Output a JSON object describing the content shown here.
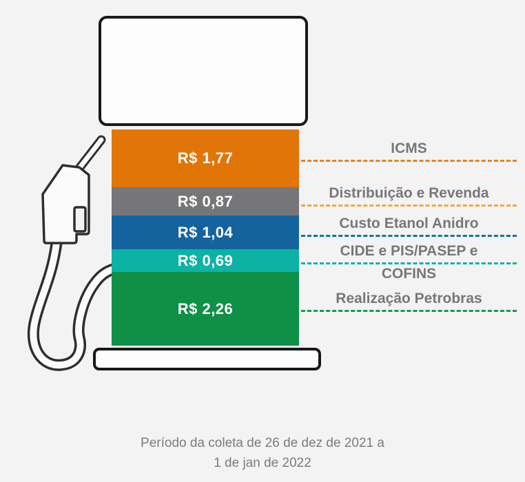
{
  "chart_data": {
    "type": "bar",
    "variant": "stacked-single-column-pictorial",
    "subject_icon": "fuel-pump",
    "currency": "R$",
    "segments": [
      {
        "label": "ICMS",
        "value": 1.77,
        "value_label": "R$ 1,77",
        "color": "#e27508",
        "line_color": "#e8811c",
        "label_lines": [
          "ICMS"
        ]
      },
      {
        "label": "Distribuição e Revenda",
        "value": 0.87,
        "value_label": "R$ 0,87",
        "color": "#767678",
        "line_color": "#f0a83e",
        "label_lines": [
          "Distribuição e Revenda"
        ]
      },
      {
        "label": "Custo Etanol Anidro",
        "value": 1.04,
        "value_label": "R$ 1,04",
        "color": "#15639e",
        "line_color": "#1272a0",
        "label_lines": [
          "Custo Etanol Anidro"
        ]
      },
      {
        "label": "CIDE e PIS/PASEP e COFINS",
        "value": 0.69,
        "value_label": "R$ 0,69",
        "color": "#0cb2a4",
        "line_color": "#0cb2a4",
        "label_lines": [
          "CIDE e PIS/PASEP e",
          "COFINS"
        ]
      },
      {
        "label": "Realização Petrobras",
        "value": 2.26,
        "value_label": "R$ 2,26",
        "color": "#0f9048",
        "line_color": "#159a52",
        "label_lines": [
          "Realização Petrobras"
        ]
      }
    ],
    "legend_position": "right",
    "grid": false
  },
  "caption": {
    "line1": "Período da coleta de 26 de dez de 2021 a",
    "line2": "1 de jan de 2022"
  }
}
